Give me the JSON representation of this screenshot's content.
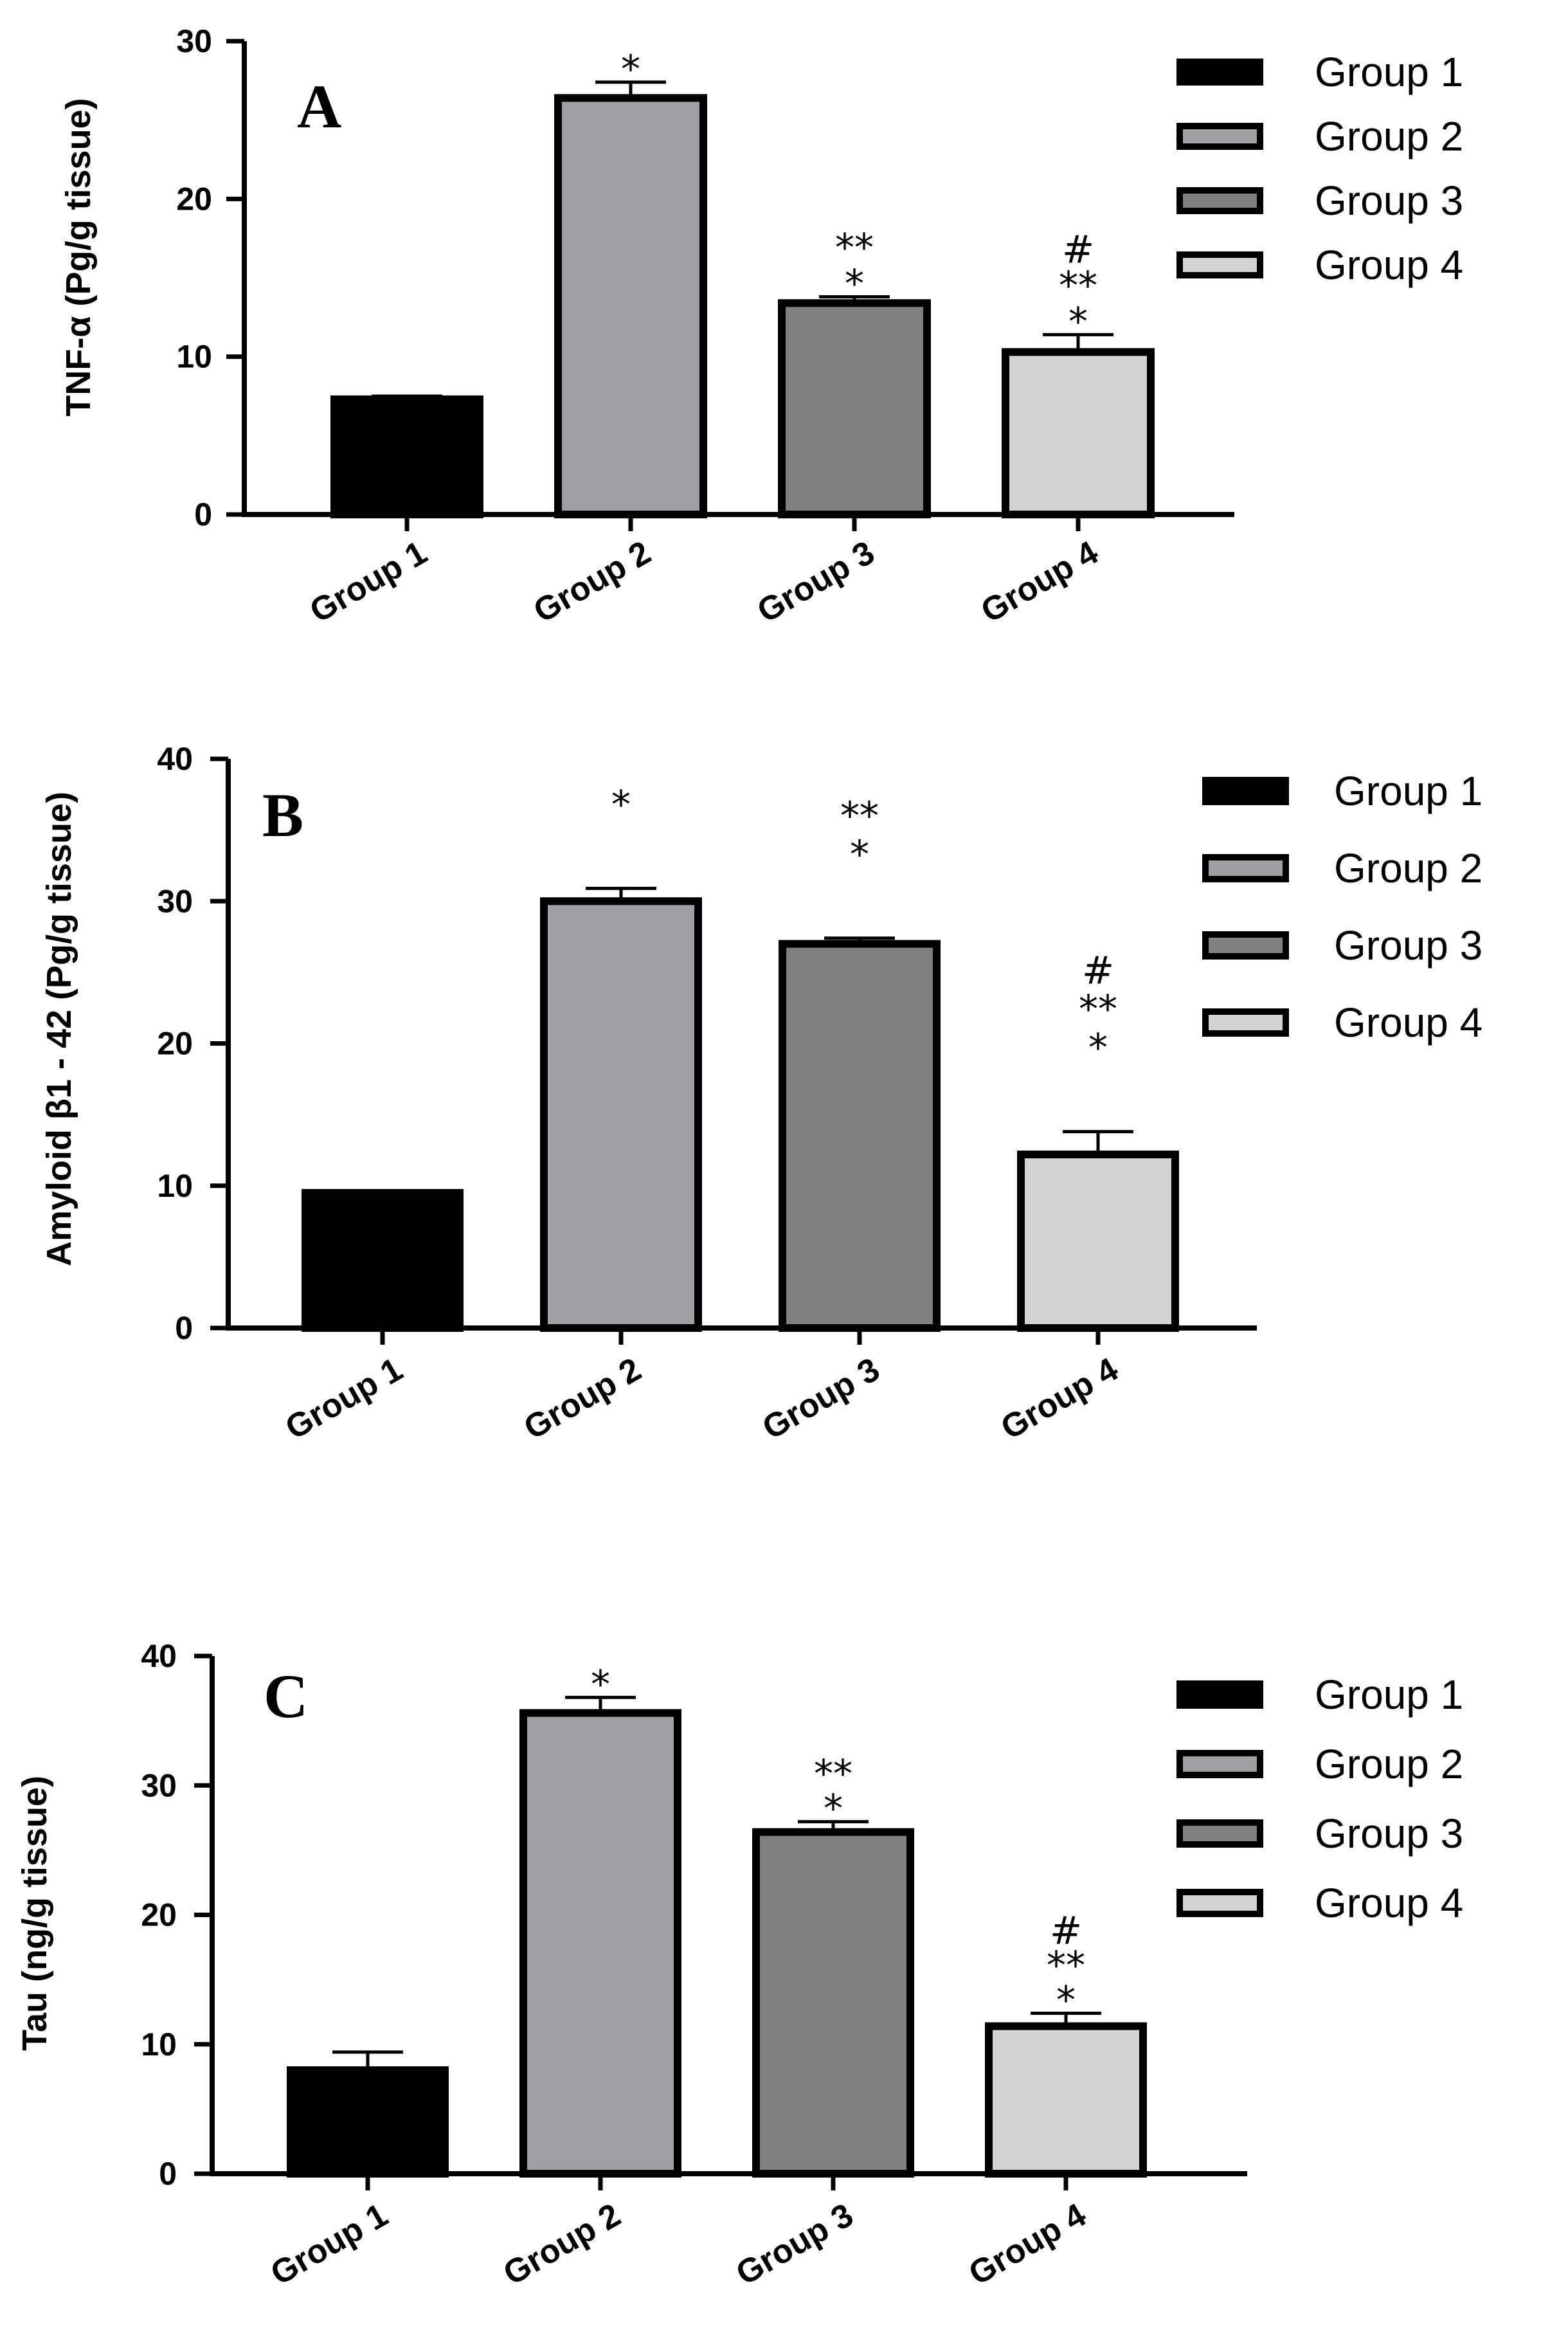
{
  "colors": {
    "group1": "#000000",
    "group2": "#a0a0a4",
    "group3": "#808080",
    "group4": "#d3d3d3",
    "outline": "#000000"
  },
  "chart_data": [
    {
      "type": "bar",
      "panel_label": "A",
      "ylabel": "TNF-α (Pg/g tissue)",
      "ylim": [
        0,
        30
      ],
      "yticks": [
        0,
        10,
        20,
        30
      ],
      "categories": [
        "Group 1",
        "Group 2",
        "Group 3",
        "Group 4"
      ],
      "values": [
        7.3,
        26.4,
        13.4,
        10.3
      ],
      "errors": [
        0.2,
        1.0,
        0.4,
        1.1
      ],
      "annotations": [
        [],
        [
          "*"
        ],
        [
          "**",
          "*"
        ],
        [
          "#",
          "**",
          "*"
        ]
      ],
      "legend": [
        "Group 1",
        "Group 2",
        "Group 3",
        "Group 4"
      ],
      "legend_position": "top-right"
    },
    {
      "type": "bar",
      "panel_label": "B",
      "ylabel": "Amyloid β1 - 42 (Pg/g tissue)",
      "ylim": [
        0,
        40
      ],
      "yticks": [
        0,
        10,
        20,
        30,
        40
      ],
      "categories": [
        "Group 1",
        "Group 2",
        "Group 3",
        "Group 4"
      ],
      "values": [
        9.5,
        30.0,
        27.0,
        12.2
      ],
      "errors": [
        0.1,
        0.9,
        0.4,
        1.6
      ],
      "annotations": [
        [],
        [
          "*"
        ],
        [
          "**",
          "*"
        ],
        [
          "#",
          "**",
          "*"
        ]
      ],
      "legend": [
        "Group 1",
        "Group 2",
        "Group 3",
        "Group 4"
      ],
      "legend_position": "top-right"
    },
    {
      "type": "bar",
      "panel_label": "C",
      "ylabel": "Tau (ng/g tissue)",
      "ylim": [
        0,
        40
      ],
      "yticks": [
        0,
        10,
        20,
        30,
        40
      ],
      "categories": [
        "Group 1",
        "Group 2",
        "Group 3",
        "Group 4"
      ],
      "values": [
        8.0,
        35.6,
        26.4,
        11.4
      ],
      "errors": [
        1.4,
        1.2,
        0.8,
        1.0
      ],
      "annotations": [
        [],
        [
          "*"
        ],
        [
          "**",
          "*"
        ],
        [
          "#",
          "**",
          "*"
        ]
      ],
      "legend": [
        "Group 1",
        "Group 2",
        "Group 3",
        "Group 4"
      ],
      "legend_position": "top-right"
    }
  ]
}
